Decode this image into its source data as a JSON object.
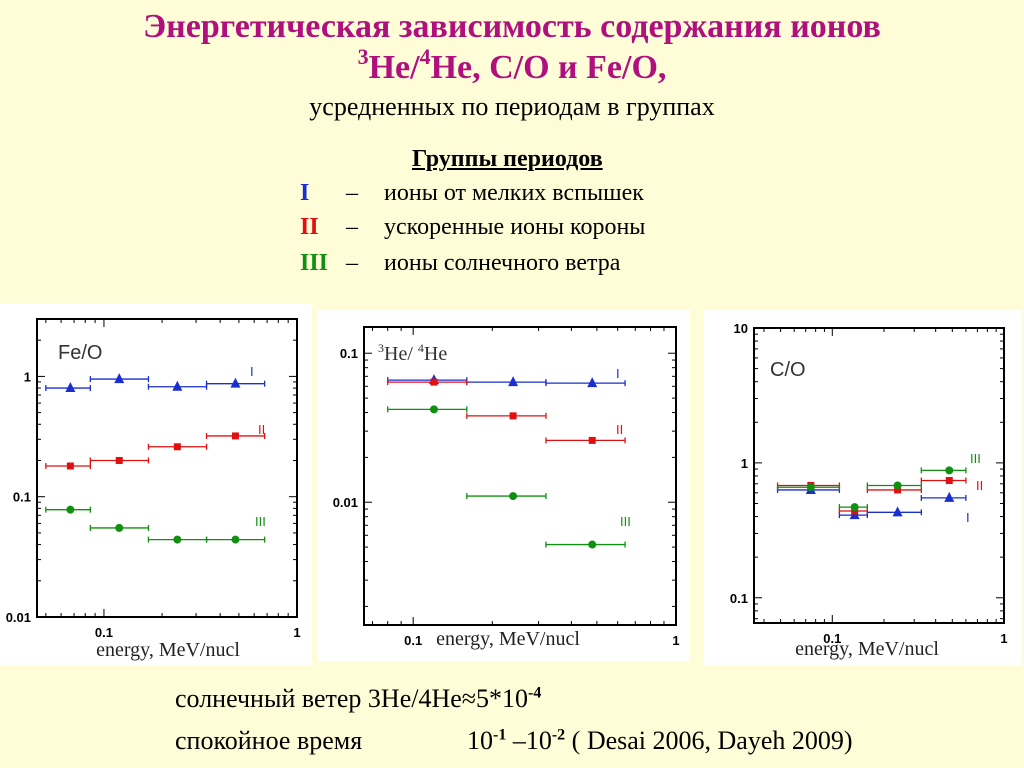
{
  "header": {
    "title_line1": "Энергетическая зависимость содержания ионов",
    "title_line2_sup1": "3",
    "title_line2_he": "He/",
    "title_line2_sup2": "4",
    "title_line2_rest": "He, C/O и Fe/O,",
    "subtitle": "усредненных по периодам в группах"
  },
  "groups": {
    "heading": "Группы периодов",
    "items": [
      {
        "roman": "I",
        "dash": "–",
        "text": "ионы от мелких вспышек",
        "color": "#1a2fd0"
      },
      {
        "roman": "II",
        "dash": "–",
        "text": "ускоренные ионы короны",
        "color": "#e01010"
      },
      {
        "roman": "III",
        "dash": "–",
        "text": "ионы солнечного ветра",
        "color": "#109010"
      }
    ]
  },
  "chart_data": [
    {
      "type": "scatter",
      "title": "Fe/O",
      "xlabel": "energy,  MeV/nucl",
      "xscale": "log",
      "yscale": "log",
      "xlim": [
        0.045,
        1.0
      ],
      "ylim": [
        0.01,
        3.0
      ],
      "xticks": [
        "0.1",
        "1"
      ],
      "yticks": [
        "0.01",
        "0.1",
        "1"
      ],
      "series": [
        {
          "name": "I",
          "color": "#1a2fd0",
          "marker": "triangle",
          "x": [
            0.067,
            0.12,
            0.24,
            0.48
          ],
          "y": [
            0.8,
            0.95,
            0.82,
            0.87
          ],
          "xlo": [
            0.05,
            0.085,
            0.17,
            0.34
          ],
          "xhi": [
            0.085,
            0.17,
            0.34,
            0.68
          ]
        },
        {
          "name": "II",
          "color": "#e01010",
          "marker": "square",
          "x": [
            0.067,
            0.12,
            0.24,
            0.48
          ],
          "y": [
            0.18,
            0.2,
            0.26,
            0.32
          ],
          "xlo": [
            0.05,
            0.085,
            0.17,
            0.34
          ],
          "xhi": [
            0.085,
            0.17,
            0.34,
            0.68
          ]
        },
        {
          "name": "III",
          "color": "#109010",
          "marker": "circle",
          "x": [
            0.067,
            0.12,
            0.24,
            0.48
          ],
          "y": [
            0.078,
            0.055,
            0.044,
            0.044
          ],
          "xlo": [
            0.05,
            0.085,
            0.17,
            0.34
          ],
          "xhi": [
            0.085,
            0.17,
            0.34,
            0.68
          ]
        }
      ]
    },
    {
      "type": "scatter",
      "title_sup1": "3",
      "title_mid": "He/ ",
      "title_sup2": "4",
      "title_end": "He",
      "xlabel": "energy,  MeV/nucl",
      "xscale": "log",
      "yscale": "log",
      "xlim": [
        0.065,
        1.0
      ],
      "ylim": [
        0.0015,
        0.15
      ],
      "xticks": [
        "0.1",
        "1"
      ],
      "yticks": [
        "0.01",
        "0.1"
      ],
      "series": [
        {
          "name": "I",
          "color": "#1a2fd0",
          "marker": "triangle",
          "x": [
            0.12,
            0.24,
            0.48
          ],
          "y": [
            0.066,
            0.064,
            0.063
          ],
          "xlo": [
            0.08,
            0.16,
            0.32
          ],
          "xhi": [
            0.16,
            0.32,
            0.64
          ]
        },
        {
          "name": "II",
          "color": "#e01010",
          "marker": "square",
          "x": [
            0.12,
            0.24,
            0.48
          ],
          "y": [
            0.064,
            0.038,
            0.026
          ],
          "xlo": [
            0.08,
            0.16,
            0.32
          ],
          "xhi": [
            0.16,
            0.32,
            0.64
          ]
        },
        {
          "name": "III",
          "color": "#109010",
          "marker": "circle",
          "x": [
            0.12,
            0.24,
            0.48
          ],
          "y": [
            0.042,
            0.011,
            0.0052
          ],
          "xlo": [
            0.08,
            0.16,
            0.32
          ],
          "xhi": [
            0.16,
            0.32,
            0.64
          ]
        }
      ]
    },
    {
      "type": "scatter",
      "title": "C/O",
      "xlabel": "energy,  MeV/nucl",
      "xscale": "log",
      "yscale": "log",
      "xlim": [
        0.035,
        1.0
      ],
      "ylim": [
        0.065,
        10.0
      ],
      "xticks": [
        "0.1",
        "1"
      ],
      "yticks": [
        "0.1",
        "1",
        "10"
      ],
      "series": [
        {
          "name": "I",
          "color": "#1a2fd0",
          "marker": "triangle",
          "x": [
            0.075,
            0.135,
            0.24,
            0.48
          ],
          "y": [
            0.63,
            0.41,
            0.43,
            0.55
          ],
          "xlo": [
            0.048,
            0.11,
            0.16,
            0.33
          ],
          "xhi": [
            0.11,
            0.16,
            0.33,
            0.6
          ]
        },
        {
          "name": "II",
          "color": "#e01010",
          "marker": "square",
          "x": [
            0.075,
            0.135,
            0.24,
            0.48
          ],
          "y": [
            0.68,
            0.44,
            0.63,
            0.74
          ],
          "xlo": [
            0.048,
            0.11,
            0.16,
            0.33
          ],
          "xhi": [
            0.11,
            0.16,
            0.33,
            0.6
          ]
        },
        {
          "name": "III",
          "color": "#109010",
          "marker": "circle",
          "x": [
            0.075,
            0.135,
            0.24,
            0.48
          ],
          "y": [
            0.66,
            0.47,
            0.68,
            0.88
          ],
          "xlo": [
            0.048,
            0.11,
            0.16,
            0.33
          ],
          "xhi": [
            0.11,
            0.16,
            0.33,
            0.6
          ]
        }
      ]
    }
  ],
  "footer": {
    "line1_text": "солнечный ветер  3He/4He≈5*10",
    "line1_exp": "-4",
    "line2_label": "спокойное время",
    "line2_a": "10",
    "line2_exp1": "-1",
    "line2_dash": " –10",
    "line2_exp2": "-2",
    "line2_ref": "  ( Desai 2006, Dayeh 2009)"
  }
}
